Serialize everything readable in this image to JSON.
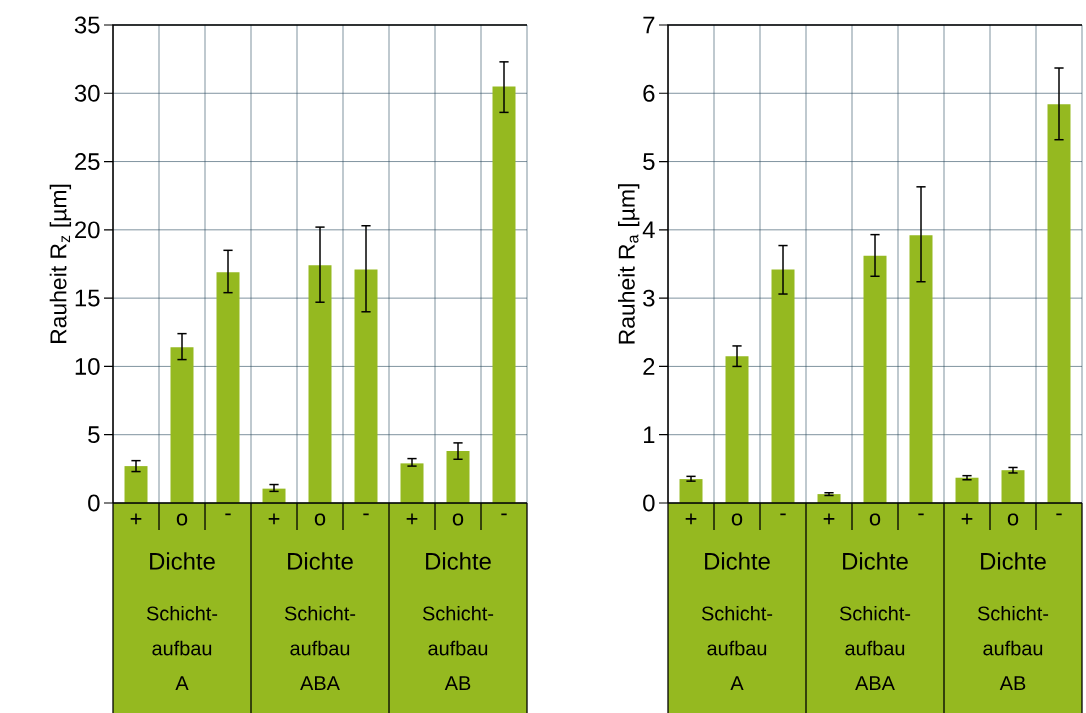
{
  "chart_data": [
    {
      "type": "bar",
      "ylabel": "Rauheit R$_{z}$ [µm]",
      "categories": [
        "+",
        "o",
        "-",
        "+",
        "o",
        "-",
        "+",
        "o",
        "-"
      ],
      "values": [
        2.7,
        11.4,
        16.9,
        1.05,
        17.4,
        17.1,
        2.9,
        3.8,
        30.5
      ],
      "errors": [
        [
          2.3,
          3.1
        ],
        [
          10.5,
          12.4
        ],
        [
          15.4,
          18.5
        ],
        [
          0.85,
          1.35
        ],
        [
          14.7,
          20.2
        ],
        [
          14.0,
          20.3
        ],
        [
          2.7,
          3.25
        ],
        [
          3.2,
          4.4
        ],
        [
          28.6,
          32.3
        ]
      ],
      "color": "#95b920",
      "ylim": [
        0,
        35
      ],
      "yticks": [
        0,
        5,
        10,
        15,
        20,
        25,
        30,
        35
      ],
      "grid": true,
      "annotations": [
        "Dichte",
        "Schicht-aufbau A",
        "Dichte",
        "Schicht-aufbau ABA",
        "Dichte",
        "Schicht-aufbau AB"
      ]
    },
    {
      "type": "bar",
      "ylabel": "Rauheit R$_{a}$ [µm]",
      "categories": [
        "+",
        "o",
        "-",
        "+",
        "o",
        "-",
        "+",
        "o",
        "-"
      ],
      "values": [
        0.35,
        2.15,
        3.42,
        0.13,
        3.62,
        3.92,
        0.37,
        0.48,
        5.84
      ],
      "errors": [
        [
          0.32,
          0.39
        ],
        [
          2.0,
          2.3
        ],
        [
          3.06,
          3.77
        ],
        [
          0.11,
          0.15
        ],
        [
          3.32,
          3.93
        ],
        [
          3.24,
          4.63
        ],
        [
          0.34,
          0.4
        ],
        [
          0.44,
          0.52
        ],
        [
          5.32,
          6.37
        ]
      ],
      "color": "#95b920",
      "ylim": [
        0,
        7
      ],
      "yticks": [
        0,
        1,
        2,
        3,
        4,
        5,
        6,
        7
      ],
      "grid": true,
      "annotations": [
        "Dichte",
        "Schicht-aufbau A",
        "Dichte",
        "Schicht-aufbau ABA",
        "Dichte",
        "Schicht-aufbau AB"
      ]
    }
  ]
}
